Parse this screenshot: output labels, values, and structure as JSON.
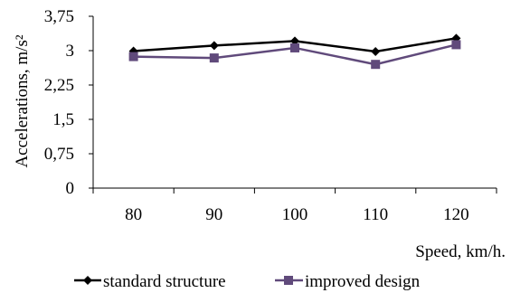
{
  "chart_data": {
    "type": "line",
    "title": "",
    "xlabel": "Speed, km/h.",
    "ylabel": "Accelerations, m/s²",
    "categories": [
      "80",
      "90",
      "100",
      "110",
      "120"
    ],
    "y_ticks": [
      "0",
      "0,75",
      "1,5",
      "2,25",
      "3",
      "3,75"
    ],
    "y_tick_values": [
      0,
      0.75,
      1.5,
      2.25,
      3,
      3.75
    ],
    "ylim": [
      0,
      3.75
    ],
    "grid": false,
    "legend_position": "bottom",
    "series": [
      {
        "name": "standard structure",
        "values": [
          2.99,
          3.11,
          3.21,
          2.98,
          3.27
        ],
        "color": "#000000",
        "marker": "diamond"
      },
      {
        "name": "improved design",
        "values": [
          2.87,
          2.84,
          3.06,
          2.7,
          3.13
        ],
        "color": "#604a7b",
        "marker": "square"
      }
    ]
  }
}
